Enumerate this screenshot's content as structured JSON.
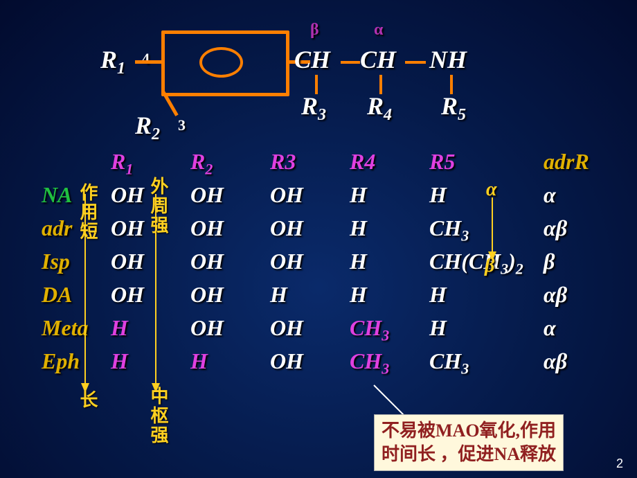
{
  "structure": {
    "R1": "R",
    "R1sub": "1",
    "R2": "R",
    "R2sub": "2",
    "R3": "R",
    "R3sub": "3",
    "R4": "R",
    "R4sub": "4",
    "R5": "R",
    "R5sub": "5",
    "pos4": "4",
    "pos3": "3",
    "beta": "β",
    "alpha": "α",
    "CH1": "CH",
    "CH2": "CH",
    "NH": "NH"
  },
  "header": {
    "R1": "R",
    "R1sub": "1",
    "R2": "R",
    "R2sub": "2",
    "R3": "R3",
    "R4": "R4",
    "R5": "R5",
    "adr": "adrR"
  },
  "rows": [
    {
      "name": "NA",
      "nameClass": "green",
      "r1": "OH",
      "r1m": false,
      "r2": "OH",
      "r2m": false,
      "r3": "OH",
      "r4": "H",
      "r4m": false,
      "r5": "H",
      "adr": "α"
    },
    {
      "name": "adr",
      "nameClass": "gold",
      "r1": "OH",
      "r1m": false,
      "r2": "OH",
      "r2m": false,
      "r3": "OH",
      "r4": "H",
      "r4m": false,
      "r5": "CH",
      "r5sub": "3",
      "adr": "αβ"
    },
    {
      "name": "Isp",
      "nameClass": "gold",
      "r1": "OH",
      "r1m": false,
      "r2": "OH",
      "r2m": false,
      "r3": "OH",
      "r4": "H",
      "r4m": false,
      "r5s": "CH(CH",
      "r5sub": "3",
      "r5e": ")",
      "r5sub2": "2",
      "adr": "β"
    },
    {
      "name": "DA",
      "nameClass": "gold",
      "r1": "OH",
      "r1m": false,
      "r2": "OH",
      "r2m": false,
      "r3": "H",
      "r4": "H",
      "r4m": false,
      "r5": "H",
      "adr": "αβ"
    },
    {
      "name": "Meta",
      "nameClass": "gold",
      "r1": "H",
      "r1m": true,
      "r2": "OH",
      "r2m": false,
      "r3": "OH",
      "r4": "CH",
      "r4sub": "3",
      "r4m": true,
      "r5": "H",
      "adr": "α"
    },
    {
      "name": "Eph",
      "nameClass": "gold",
      "r1": "H",
      "r1m": true,
      "r2": "H",
      "r2m": true,
      "r3": "OH",
      "r4": "CH",
      "r4sub": "3",
      "r4m": true,
      "r5": "CH",
      "r5sub": "3",
      "adr": "αβ"
    }
  ],
  "arrows": {
    "col1_top": "作用短",
    "col1_bottom": "长",
    "col2_top": "外周强",
    "col2_bottom": "中枢强",
    "ab_top": "α",
    "ab_bottom": "β"
  },
  "note": {
    "line1": "不易被MAO氧化,作用",
    "line2": "时间长 ，促进NA释放"
  },
  "pageNumber": "2",
  "colors": {
    "orange": "#ff7f00",
    "yellow": "#ffd020",
    "magenta": "#e040e0",
    "green": "#20c040",
    "gold": "#e0b000",
    "purple": "#b030b0"
  }
}
